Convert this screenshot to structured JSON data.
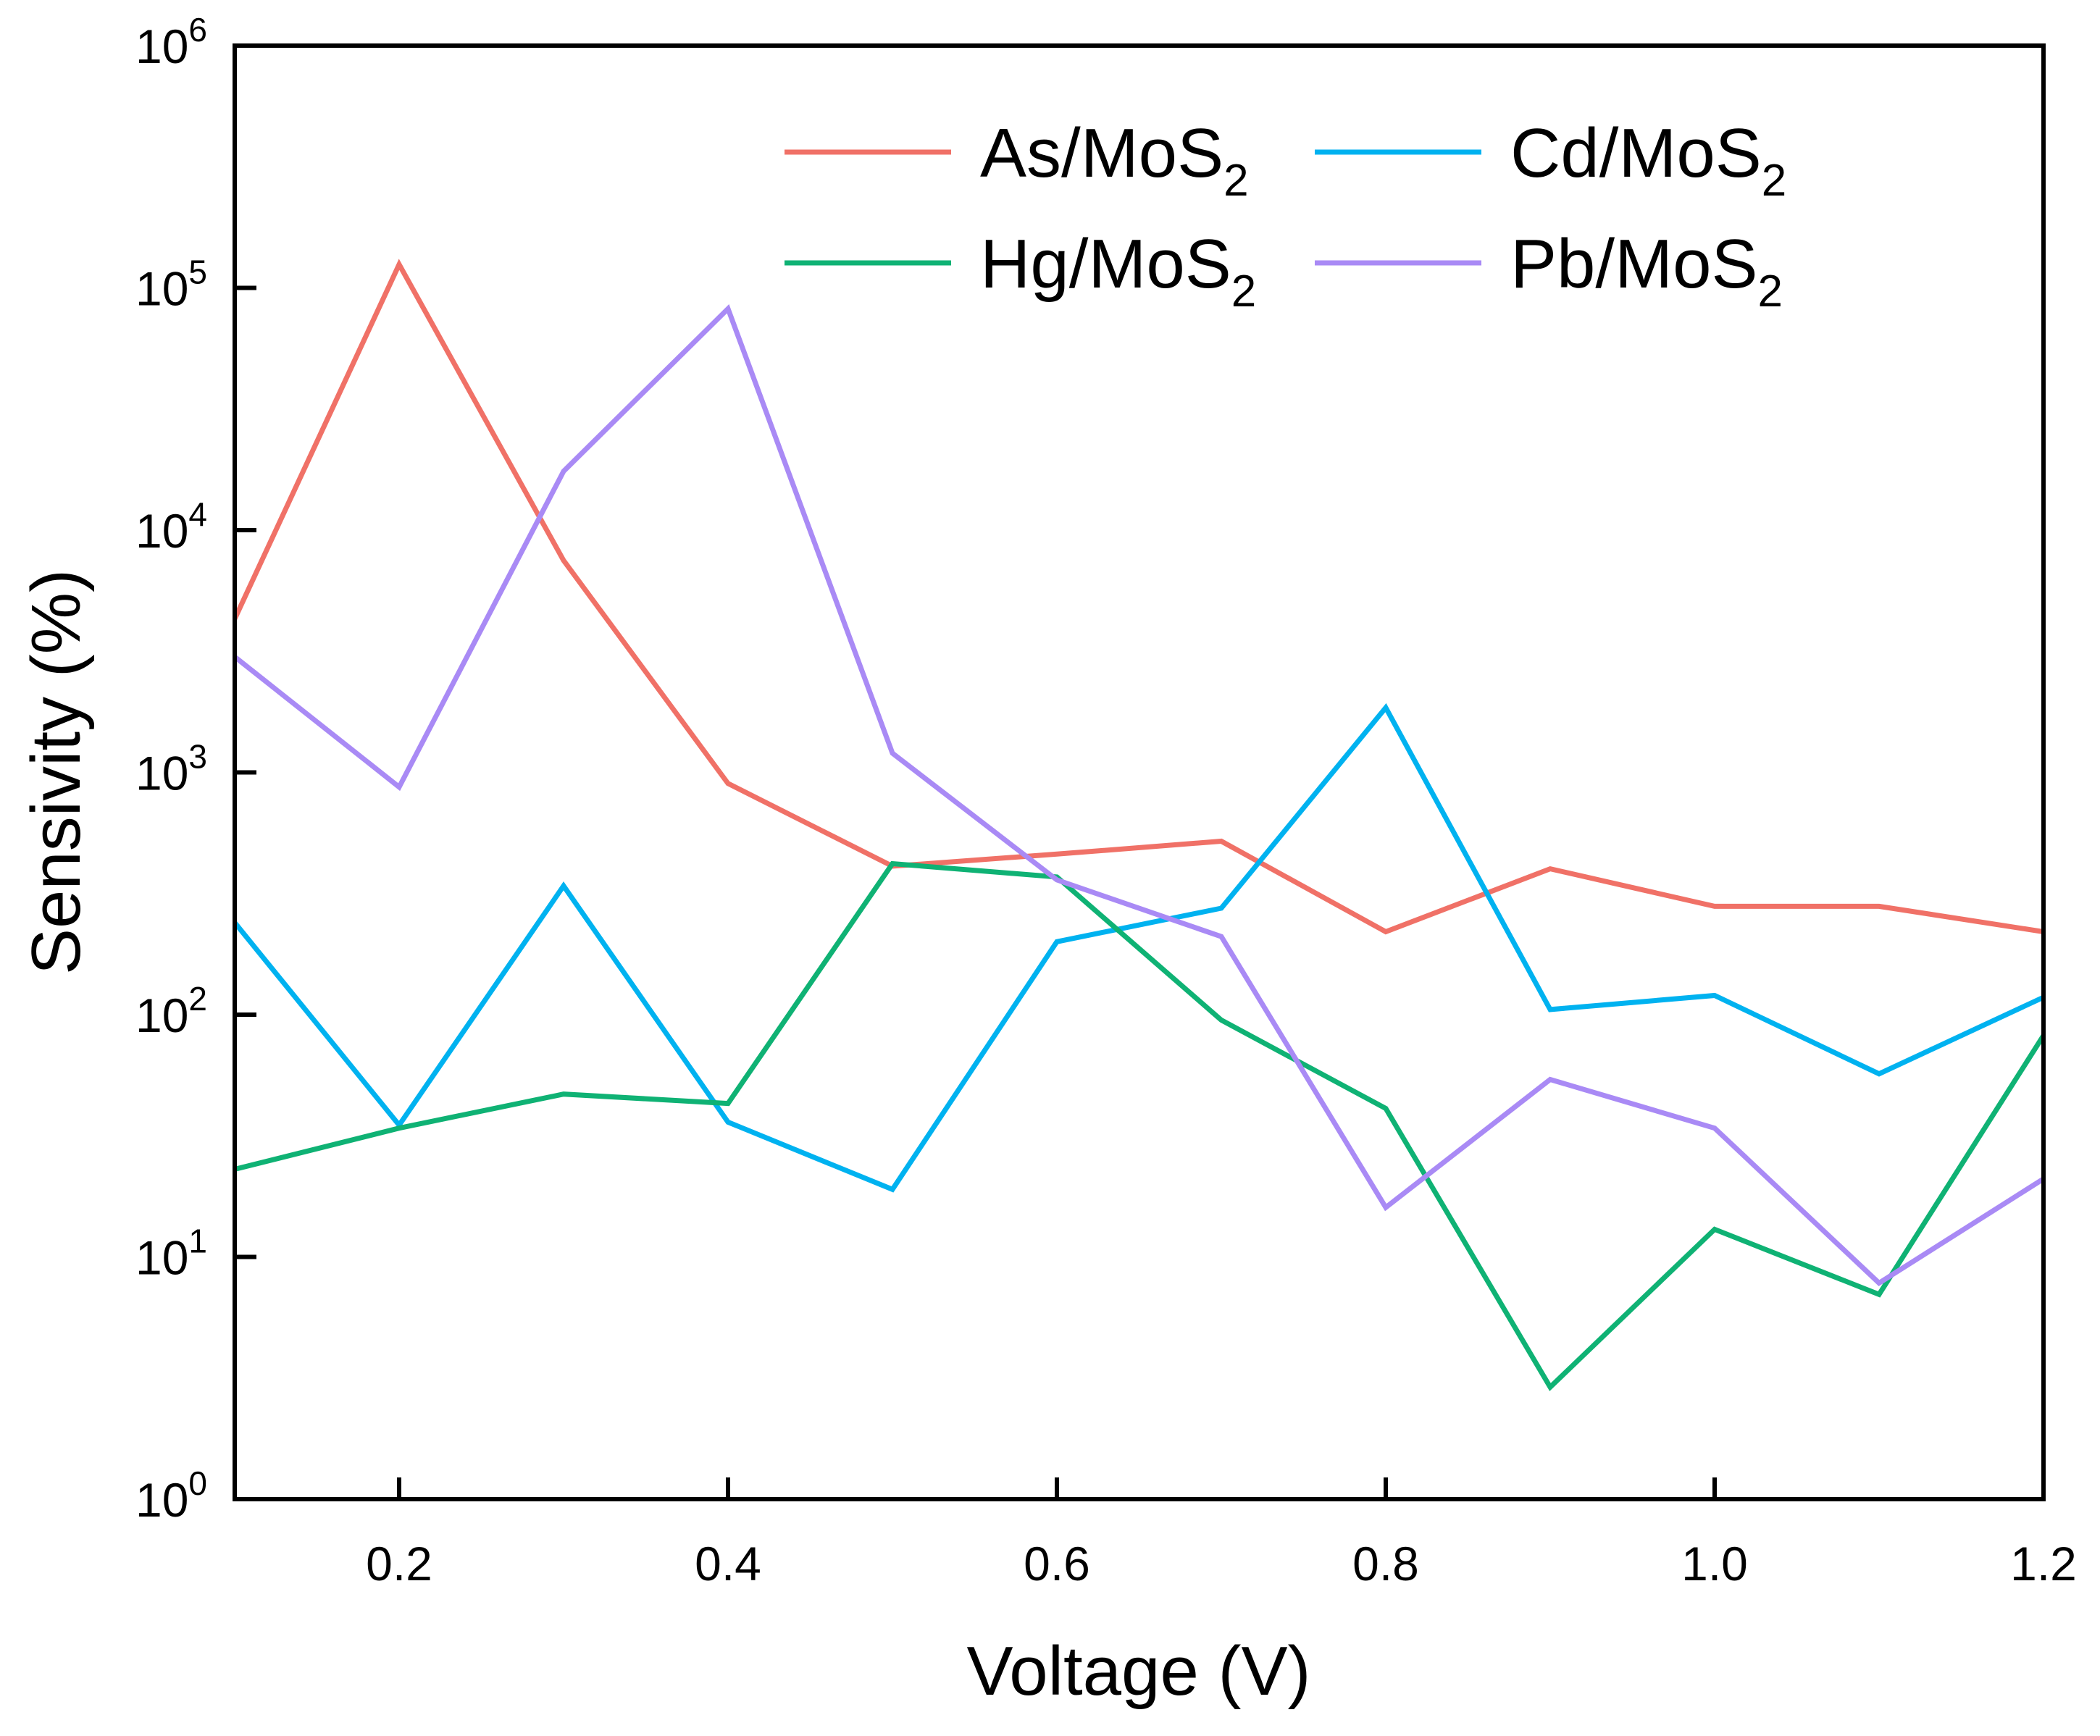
{
  "chart_data": {
    "type": "line",
    "title": "",
    "xlabel": "Voltage (V)",
    "ylabel": "Sensivity (%)",
    "xlim": [
      0.1,
      1.2
    ],
    "ylim": [
      1,
      1000000
    ],
    "yscale": "log",
    "x_ticks": [
      0.2,
      0.4,
      0.6,
      0.8,
      1.0,
      1.2
    ],
    "x_tick_labels": [
      "0.2",
      "0.4",
      "0.6",
      "0.8",
      "1.0",
      "1.2"
    ],
    "y_ticks": [
      1,
      10,
      100,
      1000,
      10000,
      100000,
      1000000
    ],
    "y_tick_base": "10",
    "y_tick_exponents": [
      "0",
      "1",
      "2",
      "3",
      "4",
      "5",
      "6"
    ],
    "legend_position": "top-right",
    "grid": false,
    "x": [
      0.1,
      0.2,
      0.3,
      0.4,
      0.5,
      0.6,
      0.7,
      0.8,
      0.9,
      1.0,
      1.1,
      1.2
    ],
    "series": [
      {
        "name_main": "As/MoS",
        "name_sub": "2",
        "color": "#F07167",
        "values": [
          4300,
          125000,
          7500,
          900,
          410,
          460,
          520,
          220,
          400,
          280,
          280,
          220
        ]
      },
      {
        "name_main": "Cd/MoS",
        "name_sub": "2",
        "color": "#00B2F0",
        "values": [
          240,
          35,
          340,
          36,
          19,
          200,
          275,
          1850,
          105,
          120,
          57,
          118
        ]
      },
      {
        "name_main": "Hg/MoS",
        "name_sub": "2",
        "color": "#0FB274",
        "values": [
          23,
          34,
          47,
          43,
          420,
          370,
          95,
          41,
          2.9,
          13,
          7,
          82
        ]
      },
      {
        "name_main": "Pb/MoS",
        "name_sub": "2",
        "color": "#A98AF5",
        "values": [
          3000,
          870,
          17500,
          82000,
          1200,
          360,
          210,
          16,
          54,
          34,
          7.8,
          21
        ]
      }
    ]
  }
}
